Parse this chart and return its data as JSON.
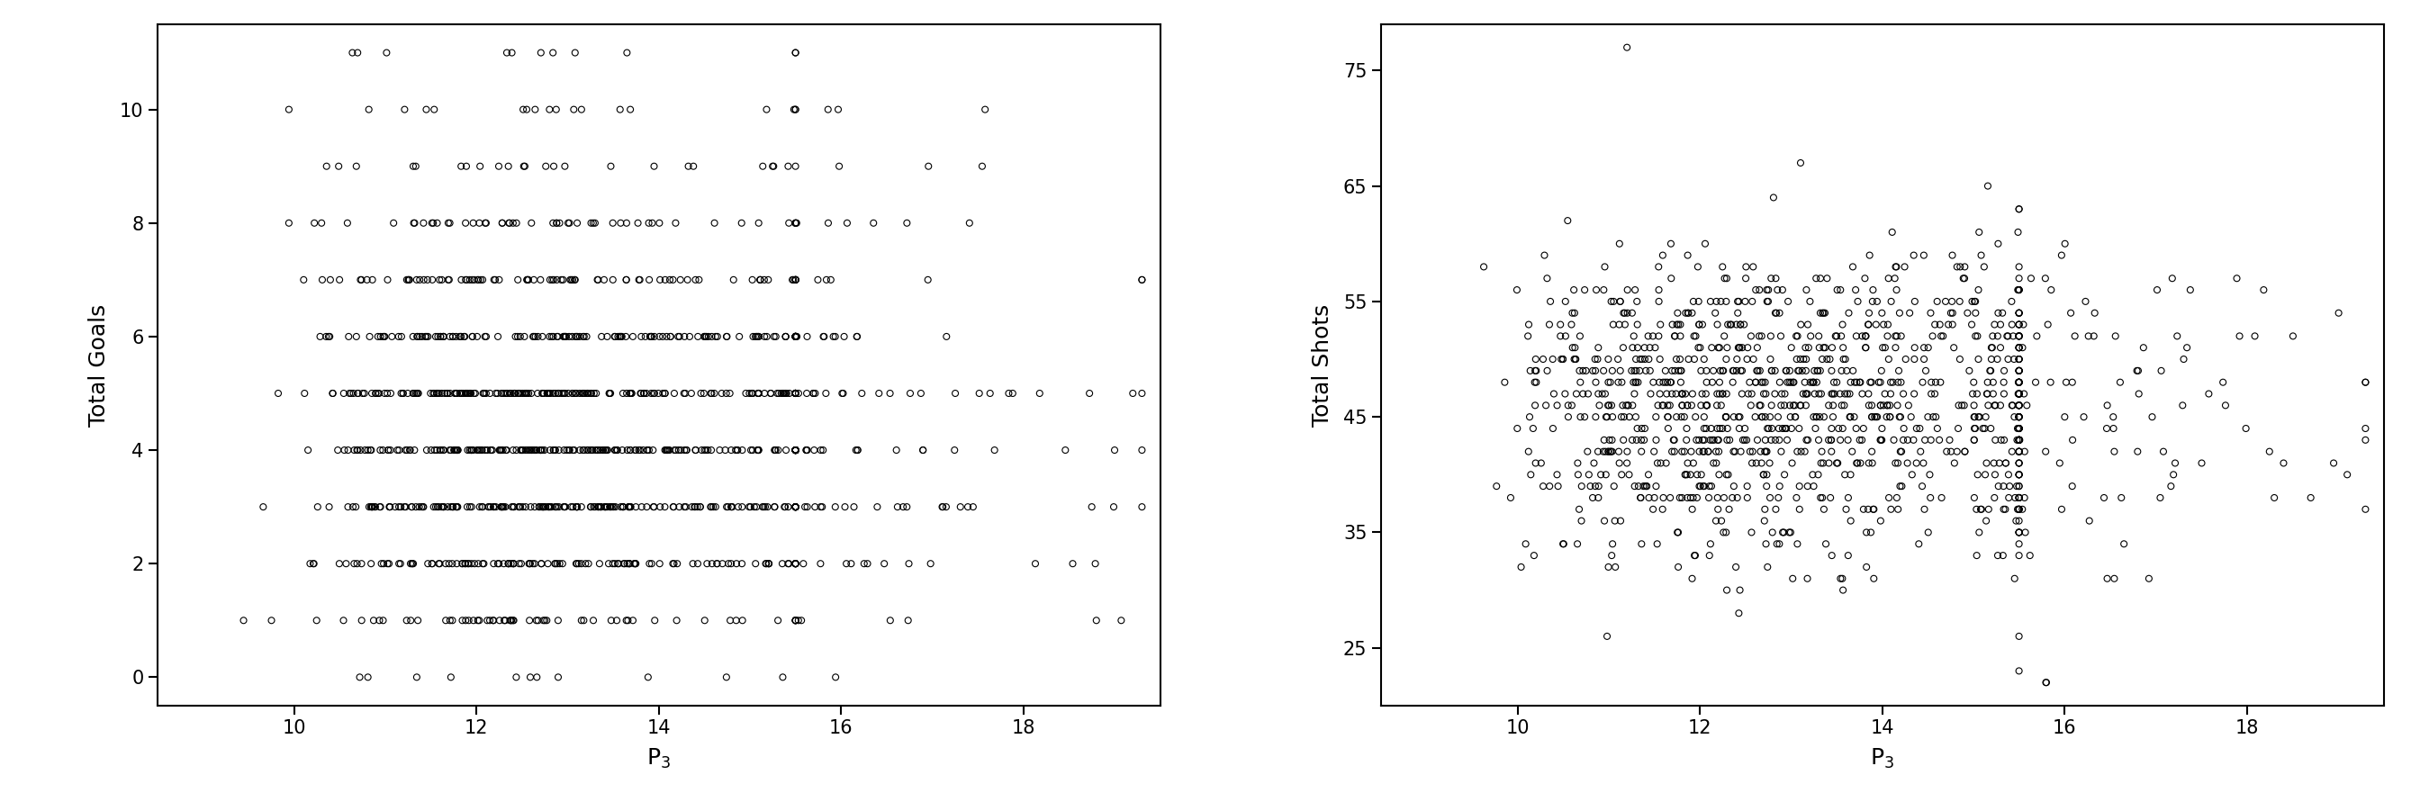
{
  "left_plot": {
    "xlabel": "P$_3$",
    "ylabel": "Total Goals",
    "xlim": [
      8.5,
      19.5
    ],
    "ylim": [
      -0.5,
      11.5
    ],
    "xticks": [
      10,
      12,
      14,
      16,
      18
    ],
    "yticks": [
      0,
      2,
      4,
      6,
      8,
      10
    ]
  },
  "right_plot": {
    "xlabel": "P$_3$",
    "ylabel": "Total Shots",
    "xlim": [
      8.5,
      19.5
    ],
    "ylim": [
      20,
      79
    ],
    "xticks": [
      10,
      12,
      14,
      16,
      18
    ],
    "yticks": [
      25,
      35,
      45,
      55,
      65,
      75
    ]
  },
  "marker": "o",
  "marker_size": 5,
  "marker_facecolor": "none",
  "marker_edgecolor": "black",
  "marker_linewidth": 0.8,
  "background_color": "white",
  "seed": 42
}
